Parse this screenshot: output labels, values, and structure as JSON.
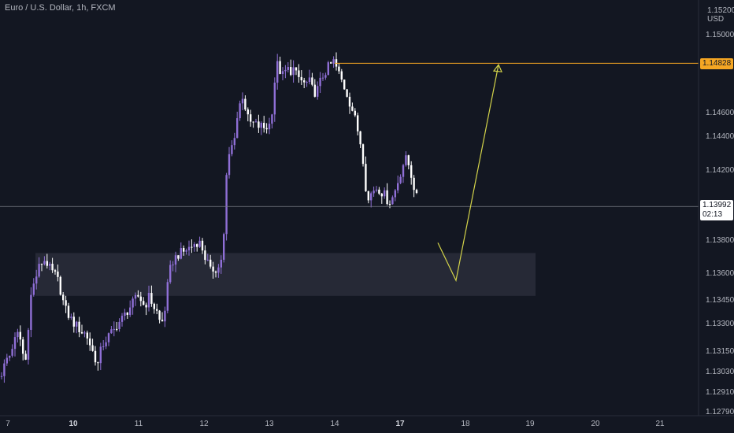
{
  "header": {
    "title": "Euro / U.S. Dollar, 1h, FXCM"
  },
  "axis": {
    "top_tick": "1.15200",
    "currency": "USD",
    "y_ticks": [
      "1.15000",
      "1.14600",
      "1.14400",
      "1.14200",
      "1.13800",
      "1.13600",
      "1.13450",
      "1.13300",
      "1.13150",
      "1.13030",
      "1.12910",
      "1.12790"
    ],
    "x_ticks": [
      {
        "label": "7",
        "bold": false
      },
      {
        "label": "10",
        "bold": true
      },
      {
        "label": "11",
        "bold": false
      },
      {
        "label": "12",
        "bold": false
      },
      {
        "label": "13",
        "bold": false
      },
      {
        "label": "14",
        "bold": false
      },
      {
        "label": "17",
        "bold": true
      },
      {
        "label": "18",
        "bold": false
      },
      {
        "label": "19",
        "bold": false
      },
      {
        "label": "20",
        "bold": false
      },
      {
        "label": "21",
        "bold": false
      }
    ]
  },
  "tags": {
    "target_price": "1.14828",
    "current_price": "1.13992",
    "countdown": "02:13"
  },
  "colors": {
    "background": "#131722",
    "bull": "#8f6fd6",
    "bear": "#ffffff",
    "target_line": "#f5a623",
    "projection": "#d4d44a",
    "zone": "#2a2d3a"
  },
  "chart_data": {
    "type": "candlestick",
    "symbol": "EURUSD",
    "interval": "1h",
    "source": "FXCM",
    "ylim": [
      1.1279,
      1.152
    ],
    "x_dates": [
      "7",
      "10",
      "11",
      "12",
      "13",
      "14",
      "17",
      "18",
      "19",
      "20",
      "21"
    ],
    "close_path": [
      [
        0,
        1.13
      ],
      [
        4,
        1.1304
      ],
      [
        8,
        1.131
      ],
      [
        12,
        1.1312
      ],
      [
        16,
        1.1318
      ],
      [
        20,
        1.1322
      ],
      [
        24,
        1.1326
      ],
      [
        28,
        1.1316
      ],
      [
        32,
        1.1306
      ],
      [
        36,
        1.133
      ],
      [
        40,
        1.135
      ],
      [
        44,
        1.1355
      ],
      [
        48,
        1.1362
      ],
      [
        52,
        1.1366
      ],
      [
        56,
        1.1368
      ],
      [
        60,
        1.1366
      ],
      [
        64,
        1.1362
      ],
      [
        68,
        1.136
      ],
      [
        72,
        1.1358
      ],
      [
        76,
        1.1352
      ],
      [
        80,
        1.1344
      ],
      [
        84,
        1.1338
      ],
      [
        88,
        1.1335
      ],
      [
        92,
        1.1332
      ],
      [
        96,
        1.133
      ],
      [
        100,
        1.1328
      ],
      [
        104,
        1.1326
      ],
      [
        108,
        1.1325
      ],
      [
        112,
        1.1322
      ],
      [
        116,
        1.1316
      ],
      [
        120,
        1.1312
      ],
      [
        124,
        1.1306
      ],
      [
        128,
        1.1315
      ],
      [
        132,
        1.132
      ],
      [
        136,
        1.1322
      ],
      [
        140,
        1.1325
      ],
      [
        144,
        1.1326
      ],
      [
        148,
        1.133
      ],
      [
        152,
        1.1332
      ],
      [
        156,
        1.1334
      ],
      [
        160,
        1.1337
      ],
      [
        164,
        1.134
      ],
      [
        168,
        1.1342
      ],
      [
        172,
        1.1345
      ],
      [
        176,
        1.1347
      ],
      [
        180,
        1.1344
      ],
      [
        184,
        1.134
      ],
      [
        188,
        1.1347
      ],
      [
        192,
        1.1344
      ],
      [
        196,
        1.134
      ],
      [
        200,
        1.1337
      ],
      [
        204,
        1.133
      ],
      [
        208,
        1.1334
      ],
      [
        212,
        1.135
      ],
      [
        216,
        1.1362
      ],
      [
        220,
        1.1368
      ],
      [
        224,
        1.137
      ],
      [
        228,
        1.1372
      ],
      [
        232,
        1.1372
      ],
      [
        236,
        1.1374
      ],
      [
        240,
        1.1375
      ],
      [
        244,
        1.1376
      ],
      [
        248,
        1.1378
      ],
      [
        252,
        1.1379
      ],
      [
        256,
        1.1376
      ],
      [
        260,
        1.137
      ],
      [
        264,
        1.1366
      ],
      [
        268,
        1.136
      ],
      [
        272,
        1.1364
      ],
      [
        276,
        1.1362
      ],
      [
        280,
        1.1366
      ],
      [
        284,
        1.138
      ],
      [
        288,
        1.142
      ],
      [
        292,
        1.1432
      ],
      [
        296,
        1.1436
      ],
      [
        300,
        1.1448
      ],
      [
        304,
        1.1458
      ],
      [
        308,
        1.1464
      ],
      [
        312,
        1.1456
      ],
      [
        316,
        1.1448
      ],
      [
        320,
        1.1448
      ],
      [
        324,
        1.1447
      ],
      [
        328,
        1.1446
      ],
      [
        332,
        1.1446
      ],
      [
        336,
        1.1445
      ],
      [
        340,
        1.1446
      ],
      [
        344,
        1.1448
      ],
      [
        348,
        1.147
      ],
      [
        352,
        1.1482
      ],
      [
        356,
        1.1478
      ],
      [
        360,
        1.1475
      ],
      [
        364,
        1.148
      ],
      [
        368,
        1.1478
      ],
      [
        372,
        1.148
      ],
      [
        376,
        1.1476
      ],
      [
        380,
        1.1474
      ],
      [
        384,
        1.1472
      ],
      [
        388,
        1.147
      ],
      [
        392,
        1.1473
      ],
      [
        396,
        1.1468
      ],
      [
        400,
        1.1466
      ],
      [
        404,
        1.1468
      ],
      [
        408,
        1.1474
      ],
      [
        412,
        1.1477
      ],
      [
        416,
        1.148
      ],
      [
        420,
        1.1482
      ],
      [
        424,
        1.1484
      ],
      [
        428,
        1.1479
      ],
      [
        432,
        1.1475
      ],
      [
        436,
        1.147
      ],
      [
        440,
        1.1466
      ],
      [
        444,
        1.146
      ],
      [
        448,
        1.1455
      ],
      [
        452,
        1.1448
      ],
      [
        456,
        1.144
      ],
      [
        460,
        1.1432
      ],
      [
        464,
        1.1412
      ],
      [
        468,
        1.1402
      ],
      [
        472,
        1.1408
      ],
      [
        476,
        1.141
      ],
      [
        480,
        1.141
      ],
      [
        484,
        1.1408
      ],
      [
        488,
        1.1406
      ],
      [
        492,
        1.1403
      ],
      [
        496,
        1.1402
      ],
      [
        500,
        1.1406
      ],
      [
        504,
        1.1412
      ],
      [
        508,
        1.1418
      ],
      [
        512,
        1.1424
      ],
      [
        516,
        1.1427
      ],
      [
        520,
        1.1422
      ],
      [
        524,
        1.1414
      ],
      [
        528,
        1.1406
      ],
      [
        532,
        1.1399
      ]
    ],
    "annotations": {
      "resistance_level": 1.14828,
      "current_price": 1.13992,
      "demand_zone": [
        1.1347,
        1.1372
      ],
      "projection": [
        [
          556,
          1.1378
        ],
        [
          579,
          1.1356
        ],
        [
          633,
          1.1482
        ]
      ]
    }
  }
}
